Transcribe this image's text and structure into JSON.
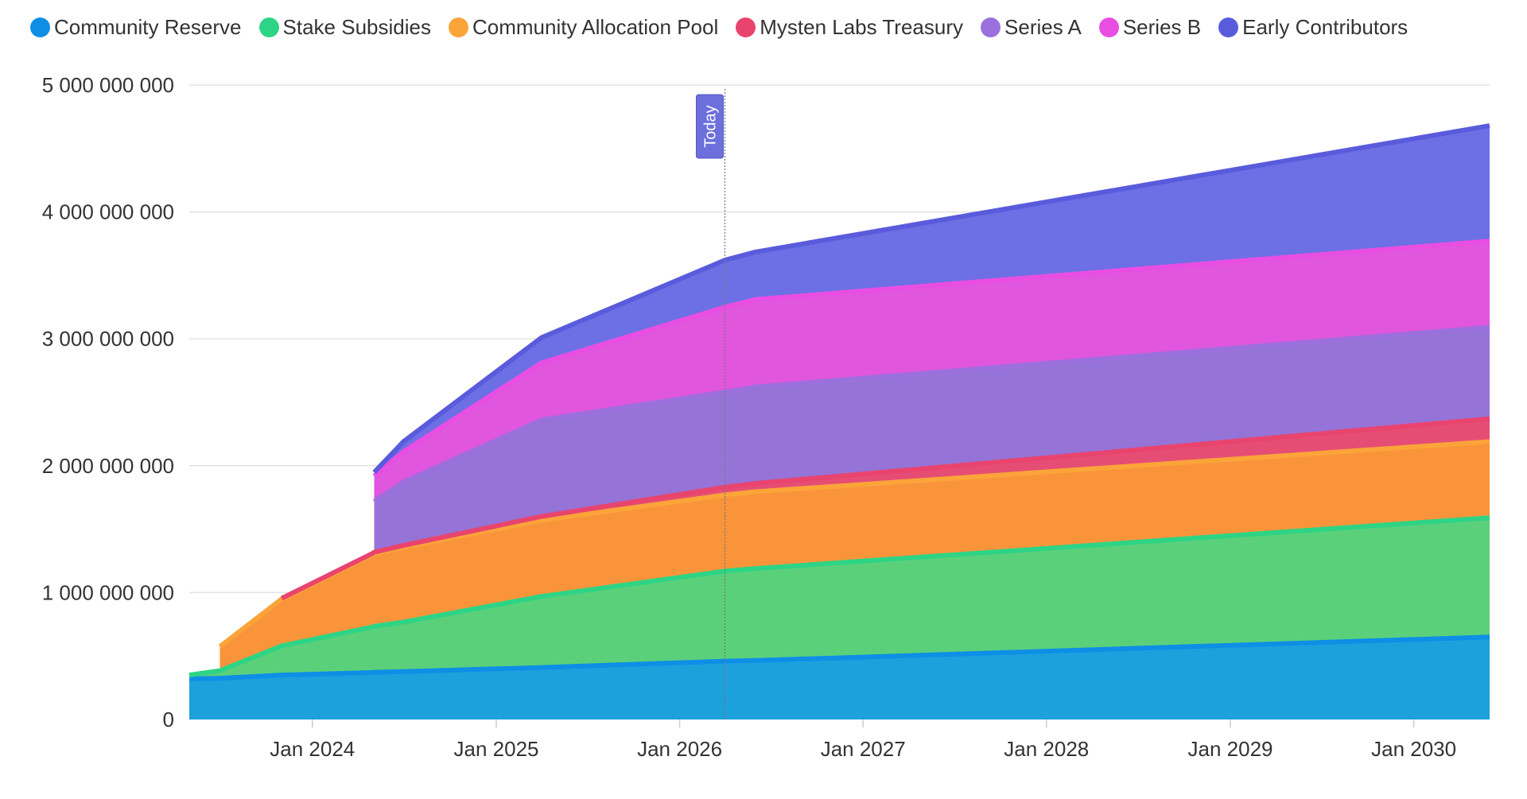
{
  "chart_data": {
    "type": "area",
    "stacked": true,
    "title": "",
    "xlabel": "",
    "ylabel": "",
    "ylim": [
      0,
      5000000000
    ],
    "xlim": [
      "2023-05-01",
      "2030-06-01"
    ],
    "y_ticks": [
      0,
      1000000000,
      2000000000,
      3000000000,
      4000000000,
      5000000000
    ],
    "y_tick_labels": [
      "0",
      "1 000 000 000",
      "2 000 000 000",
      "3 000 000 000",
      "4 000 000 000",
      "5 000 000 000"
    ],
    "x_ticks": [
      "2024-01-01",
      "2025-01-01",
      "2026-01-01",
      "2027-01-01",
      "2028-01-01",
      "2029-01-01",
      "2030-01-01"
    ],
    "x_tick_labels": [
      "Jan 2024",
      "Jan 2025",
      "Jan 2026",
      "Jan 2027",
      "Jan 2028",
      "Jan 2029",
      "Jan 2030"
    ],
    "today": {
      "date": "2026-04-01",
      "label": "Today"
    },
    "legend_position": "top-left",
    "x": [
      "2023-05-01",
      "2023-07-01",
      "2023-11-01",
      "2024-04-30",
      "2024-05-03",
      "2024-07-01",
      "2025-04-01",
      "2026-04-01",
      "2026-06-01",
      "2030-06-01"
    ],
    "series": [
      {
        "name": "Community Reserve",
        "color": "#1ca1dc",
        "edge": "#0e8fe6",
        "values": [
          320000000,
          325000000,
          350000000,
          370000000,
          372000000,
          378000000,
          410000000,
          460000000,
          465000000,
          650000000
        ]
      },
      {
        "name": "Stake Subsidies",
        "color": "#5bd07a",
        "edge": "#2ed485",
        "values": [
          30000000,
          60000000,
          230000000,
          360000000,
          362000000,
          390000000,
          560000000,
          710000000,
          725000000,
          940000000
        ]
      },
      {
        "name": "Community Allocation Pool",
        "color": "#fa943b",
        "edge": "#fba43a",
        "values": [
          0,
          190000000,
          370000000,
          570000000,
          572000000,
          590000000,
          600000000,
          600000000,
          605000000,
          600000000
        ]
      },
      {
        "name": "Mysten Labs Treasury",
        "color": "#e64d74",
        "edge": "#e9446e",
        "values": [
          0,
          0,
          5000000,
          10000000,
          12000000,
          15000000,
          30000000,
          60000000,
          65000000,
          180000000
        ]
      },
      {
        "name": "Series A",
        "color": "#9673d7",
        "edge": "#9b70dd",
        "values": [
          0,
          0,
          0,
          0,
          400000000,
          500000000,
          760000000,
          750000000,
          760000000,
          720000000
        ]
      },
      {
        "name": "Series B",
        "color": "#e056dd",
        "edge": "#e94ee3",
        "values": [
          0,
          0,
          0,
          0,
          200000000,
          240000000,
          450000000,
          670000000,
          690000000,
          680000000
        ]
      },
      {
        "name": "Early Contributors",
        "color": "#6c70e4",
        "edge": "#5a5bdc",
        "values": [
          0,
          0,
          0,
          0,
          30000000,
          80000000,
          200000000,
          370000000,
          375000000,
          910000000
        ]
      }
    ]
  }
}
